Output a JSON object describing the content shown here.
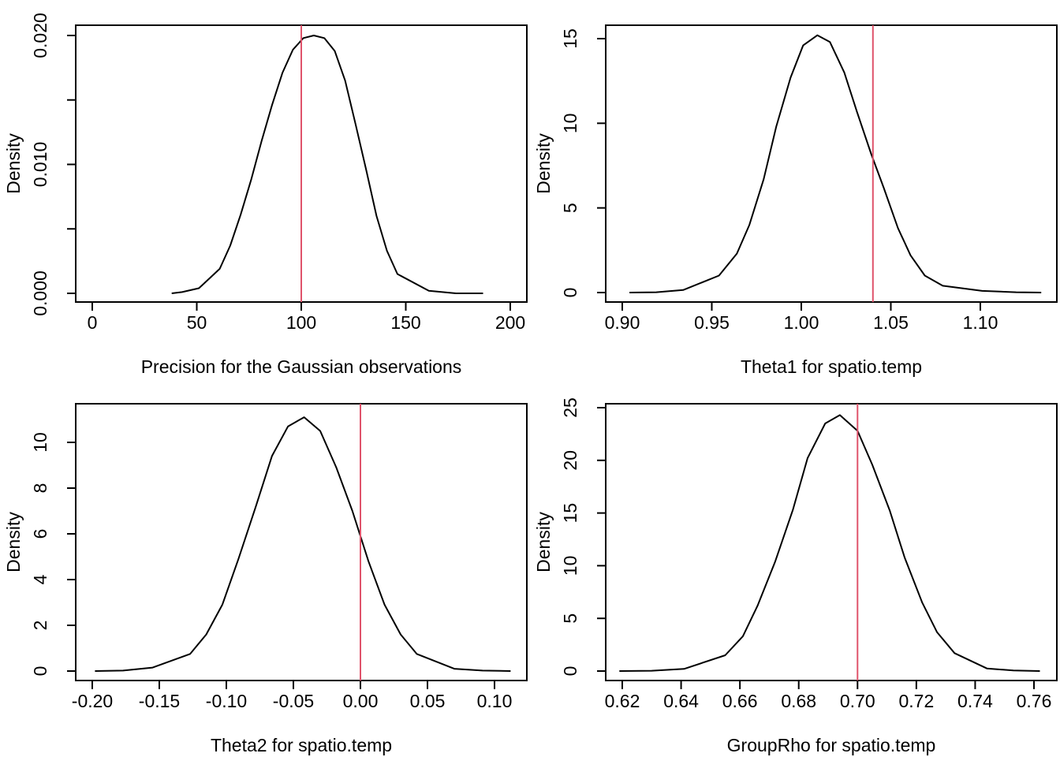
{
  "colors": {
    "curve": "#000000",
    "reference_line": "#DF536B",
    "background": "#FFFFFF"
  },
  "chart_data": [
    {
      "type": "line",
      "xlabel": "Precision for the Gaussian observations",
      "ylabel": "Density",
      "xlim": [
        0,
        200
      ],
      "ylim": [
        0,
        0.02
      ],
      "xticks": [
        0,
        50,
        100,
        150,
        200
      ],
      "xtick_labels": [
        "0",
        "50",
        "100",
        "150",
        "200"
      ],
      "yticks": [
        0,
        0.005,
        0.01,
        0.015,
        0.02
      ],
      "ytick_labels": [
        "0.000",
        "",
        "0.010",
        "",
        "0.020"
      ],
      "reference_x": 100,
      "series": [
        {
          "x": [
            38,
            43,
            51,
            61,
            66,
            71,
            76,
            81,
            86,
            91,
            96,
            101,
            106,
            111,
            116,
            121,
            126,
            131,
            136,
            141,
            146,
            161,
            174,
            187
          ],
          "y": [
            0.0,
            0.0001,
            0.0004,
            0.0019,
            0.0037,
            0.0061,
            0.0088,
            0.0118,
            0.0146,
            0.0171,
            0.0189,
            0.0198,
            0.02,
            0.0198,
            0.0188,
            0.0165,
            0.0131,
            0.0096,
            0.006,
            0.0033,
            0.0015,
            0.0002,
            0.0,
            0.0
          ]
        }
      ]
    },
    {
      "type": "line",
      "xlabel": "Theta1 for spatio.temp",
      "ylabel": "Density",
      "xlim": [
        0.9,
        1.1
      ],
      "ylim": [
        0,
        15
      ],
      "xticks": [
        0.9,
        0.95,
        1.0,
        1.05,
        1.1
      ],
      "xtick_labels": [
        "0.90",
        "0.95",
        "1.00",
        "1.05",
        "1.10"
      ],
      "yticks": [
        0,
        5,
        10,
        15
      ],
      "ytick_labels": [
        "0",
        "5",
        "10",
        "15"
      ],
      "reference_x": 1.04,
      "series": [
        {
          "x": [
            0.904,
            0.919,
            0.934,
            0.954,
            0.964,
            0.971,
            0.979,
            0.986,
            0.994,
            1.001,
            1.009,
            1.016,
            1.024,
            1.031,
            1.039,
            1.046,
            1.054,
            1.061,
            1.069,
            1.079,
            1.101,
            1.12,
            1.134
          ],
          "y": [
            0.0,
            0.02,
            0.15,
            1.0,
            2.3,
            4.0,
            6.7,
            9.8,
            12.7,
            14.6,
            15.2,
            14.8,
            13.0,
            10.7,
            8.2,
            6.2,
            3.8,
            2.2,
            1.0,
            0.4,
            0.1,
            0.02,
            0.0
          ]
        }
      ]
    },
    {
      "type": "line",
      "xlabel": "Theta2 for spatio.temp",
      "ylabel": "Density",
      "xlim": [
        -0.2,
        0.1
      ],
      "ylim": [
        0,
        11
      ],
      "xticks": [
        -0.2,
        -0.15,
        -0.1,
        -0.05,
        0.0,
        0.05,
        0.1
      ],
      "xtick_labels": [
        "-0.20",
        "-0.15",
        "-0.10",
        "-0.05",
        "0.00",
        "0.05",
        "0.10"
      ],
      "yticks": [
        0,
        2,
        4,
        6,
        8,
        10
      ],
      "ytick_labels": [
        "0",
        "2",
        "4",
        "6",
        "8",
        "10"
      ],
      "reference_x": 0.0,
      "series": [
        {
          "x": [
            -0.198,
            -0.177,
            -0.155,
            -0.127,
            -0.115,
            -0.103,
            -0.091,
            -0.078,
            -0.066,
            -0.054,
            -0.042,
            -0.03,
            -0.018,
            -0.006,
            0.006,
            0.018,
            0.03,
            0.042,
            0.07,
            0.091,
            0.112
          ],
          "y": [
            0.0,
            0.02,
            0.15,
            0.75,
            1.6,
            2.9,
            4.9,
            7.2,
            9.4,
            10.7,
            11.1,
            10.5,
            8.9,
            7.0,
            4.8,
            2.9,
            1.6,
            0.75,
            0.1,
            0.02,
            0.0
          ]
        }
      ]
    },
    {
      "type": "line",
      "xlabel": "GroupRho for spatio.temp",
      "ylabel": "Density",
      "xlim": [
        0.62,
        0.76
      ],
      "ylim": [
        0,
        25
      ],
      "xticks": [
        0.62,
        0.64,
        0.66,
        0.68,
        0.7,
        0.72,
        0.74,
        0.76
      ],
      "xtick_labels": [
        "0.62",
        "0.64",
        "0.66",
        "0.68",
        "0.70",
        "0.72",
        "0.74",
        "0.76"
      ],
      "yticks": [
        0,
        5,
        10,
        15,
        20,
        25
      ],
      "ytick_labels": [
        "0",
        "5",
        "10",
        "15",
        "20",
        "25"
      ],
      "reference_x": 0.7,
      "series": [
        {
          "x": [
            0.619,
            0.63,
            0.641,
            0.655,
            0.661,
            0.666,
            0.672,
            0.678,
            0.683,
            0.689,
            0.694,
            0.7,
            0.705,
            0.711,
            0.716,
            0.722,
            0.727,
            0.733,
            0.744,
            0.753,
            0.762
          ],
          "y": [
            0.0,
            0.03,
            0.2,
            1.5,
            3.3,
            6.2,
            10.4,
            15.3,
            20.2,
            23.5,
            24.3,
            22.8,
            19.6,
            15.2,
            10.8,
            6.5,
            3.7,
            1.7,
            0.25,
            0.05,
            0.0
          ]
        }
      ]
    }
  ]
}
